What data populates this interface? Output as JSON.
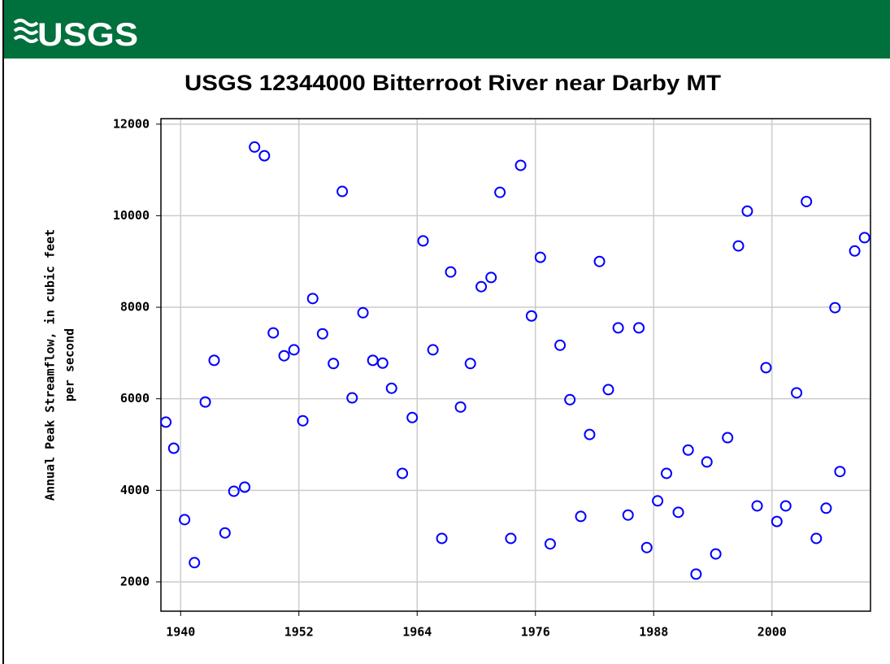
{
  "logo": "USGS",
  "chart_data": {
    "type": "scatter",
    "title": "USGS 12344000 Bitterroot River near Darby MT",
    "y_label": [
      "Annual Peak Streamflow, in cubic feet",
      "per second"
    ],
    "x": [
      1938.5,
      1939.3,
      1940.4,
      1941.4,
      1942.5,
      1943.4,
      1944.5,
      1945.4,
      1946.5,
      1947.5,
      1948.5,
      1949.4,
      1950.5,
      1951.5,
      1952.4,
      1953.4,
      1954.4,
      1955.5,
      1956.4,
      1957.4,
      1958.5,
      1959.5,
      1960.5,
      1961.4,
      1962.5,
      1963.5,
      1964.6,
      1965.6,
      1966.5,
      1967.4,
      1968.4,
      1969.4,
      1970.5,
      1971.5,
      1972.4,
      1973.5,
      1974.5,
      1975.6,
      1976.5,
      1977.5,
      1978.5,
      1979.5,
      1980.6,
      1981.5,
      1982.5,
      1983.4,
      1984.4,
      1985.4,
      1986.5,
      1987.3,
      1988.4,
      1989.3,
      1990.5,
      1991.5,
      1992.3,
      1993.4,
      1994.3,
      1995.5,
      1996.6,
      1997.5,
      1998.5,
      1999.4,
      2000.5,
      2001.4,
      2002.5,
      2003.5,
      2004.5,
      2005.5,
      2006.4,
      2006.9,
      2008.4,
      2009.4
    ],
    "values": [
      5490,
      4920,
      3360,
      2420,
      5930,
      6840,
      3070,
      3980,
      4070,
      11500,
      11310,
      7440,
      6940,
      7070,
      5520,
      8190,
      7420,
      6770,
      10530,
      6020,
      7880,
      6840,
      6780,
      6230,
      4370,
      5590,
      9450,
      7070,
      2950,
      8770,
      5820,
      6770,
      8450,
      8650,
      10510,
      2950,
      11100,
      7810,
      9090,
      2830,
      7170,
      5980,
      3430,
      5220,
      9000,
      6200,
      7550,
      3460,
      7550,
      2750,
      3770,
      4370,
      3520,
      4880,
      2170,
      4620,
      2610,
      5150,
      9340,
      10100,
      3660,
      6680,
      3320,
      3660,
      6130,
      10310,
      2950,
      3610,
      7990,
      4410,
      9230,
      9520
    ],
    "color": "#0000ff",
    "xlim": [
      1938,
      2010
    ],
    "xticks": [
      1940,
      1952,
      1964,
      1976,
      1988,
      2000
    ],
    "ylim": [
      1360,
      12120
    ],
    "yticks": [
      2000,
      4000,
      6000,
      8000,
      10000,
      12000
    ],
    "grid": true
  }
}
